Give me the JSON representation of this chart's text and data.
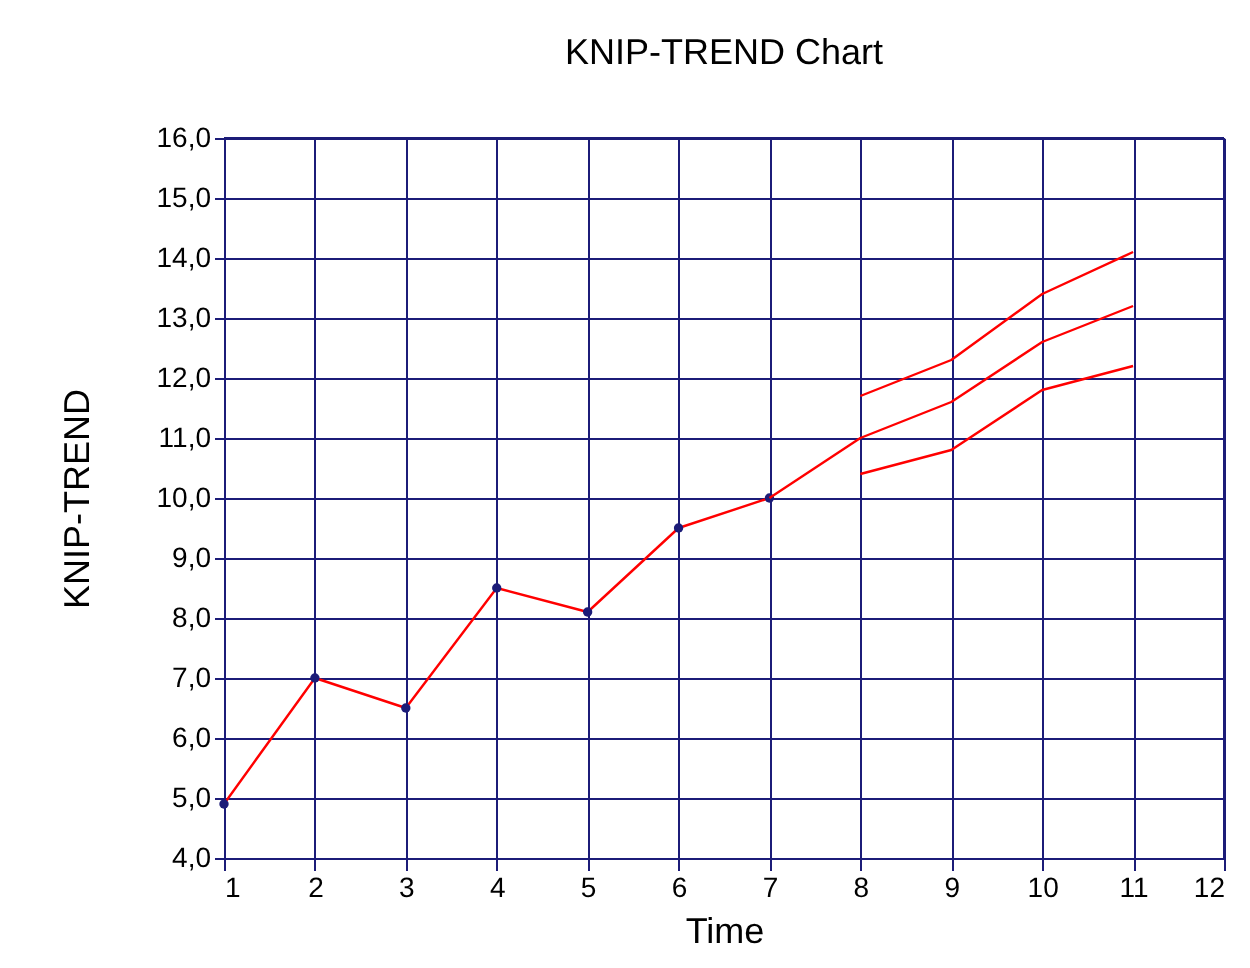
{
  "chart_data": {
    "type": "line",
    "title": "KNIP-TREND Chart",
    "xlabel": "Time",
    "ylabel": "KNIP-TREND",
    "xlim": [
      1,
      12
    ],
    "xticks": [
      1,
      2,
      3,
      4,
      5,
      6,
      7,
      8,
      9,
      10,
      11,
      12
    ],
    "ylim": [
      4,
      16
    ],
    "yticks": [
      {
        "value": 4,
        "label": "4,0"
      },
      {
        "value": 5,
        "label": "5,0"
      },
      {
        "value": 6,
        "label": "6,0"
      },
      {
        "value": 7,
        "label": "7,0"
      },
      {
        "value": 8,
        "label": "8,0"
      },
      {
        "value": 9,
        "label": "9,0"
      },
      {
        "value": 10,
        "label": "10,0"
      },
      {
        "value": 11,
        "label": "11,0"
      },
      {
        "value": 12,
        "label": "12,0"
      },
      {
        "value": 13,
        "label": "13,0"
      },
      {
        "value": 14,
        "label": "14,0"
      },
      {
        "value": 15,
        "label": "15,0"
      },
      {
        "value": 16,
        "label": "16,0"
      }
    ],
    "grid": true,
    "line_style": "solid",
    "series": [
      {
        "color": "#ff0000",
        "marker": "circle",
        "x": [
          1,
          2,
          3,
          4,
          5,
          6,
          7
        ],
        "values": [
          4.9,
          7.0,
          6.5,
          8.5,
          8.1,
          9.5,
          10.0
        ]
      },
      {
        "color": "#ff0000",
        "marker": "none",
        "x": [
          7,
          8,
          9,
          10,
          11
        ],
        "values": [
          10.0,
          11.0,
          11.6,
          12.6,
          13.2
        ]
      },
      {
        "color": "#ff0000",
        "marker": "none",
        "x": [
          8,
          9,
          10,
          11
        ],
        "values": [
          11.7,
          12.3,
          13.4,
          14.1
        ]
      },
      {
        "color": "#ff0000",
        "marker": "none",
        "x": [
          8,
          9,
          10,
          11
        ],
        "values": [
          10.4,
          10.8,
          11.8,
          12.2
        ]
      }
    ]
  }
}
